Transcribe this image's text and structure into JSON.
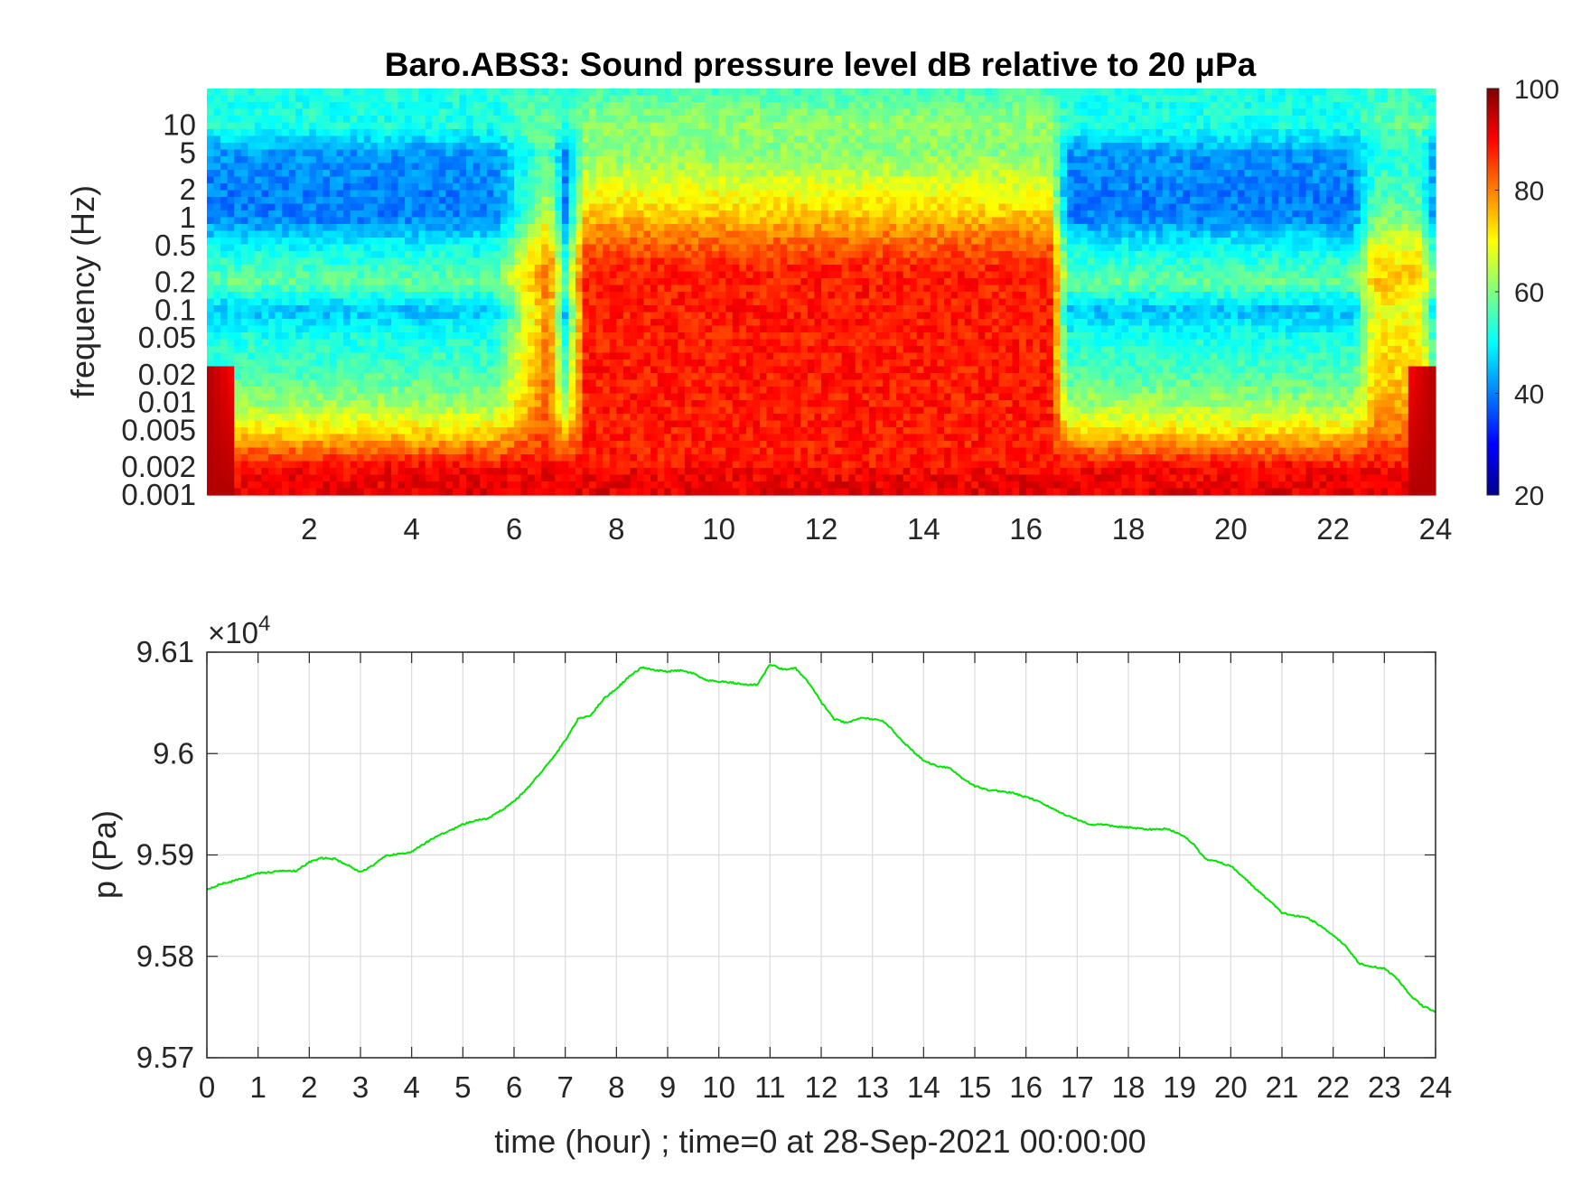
{
  "chart_data": [
    {
      "type": "heatmap",
      "title": "Baro.ABS3: Sound pressure level dB relative to 20 μPa",
      "ylabel": "frequency (Hz)",
      "xlabel": "",
      "xlim": [
        0,
        24
      ],
      "x_ticks": [
        "2",
        "4",
        "6",
        "8",
        "10",
        "12",
        "14",
        "16",
        "18",
        "20",
        "22",
        "24"
      ],
      "y_scale": "log",
      "ylim": [
        0.001,
        25
      ],
      "y_ticks": [
        "0.001",
        "0.002",
        "0.005",
        "0.01",
        "0.02",
        "0.05",
        "0.1",
        "0.2",
        "0.5",
        "1",
        "2",
        "5",
        "10"
      ],
      "colorbar": {
        "min": 20,
        "max": 100,
        "ticks": [
          "20",
          "40",
          "60",
          "80",
          "100"
        ],
        "colormap": "jet"
      },
      "background_profile_db": {
        "freq_hz": [
          0.001,
          0.002,
          0.005,
          0.01,
          0.02,
          0.05,
          0.1,
          0.2,
          0.5,
          1,
          2,
          5,
          10,
          25
        ],
        "db": [
          92,
          90,
          72,
          62,
          56,
          52,
          45,
          58,
          50,
          40,
          40,
          42,
          52,
          52
        ]
      },
      "active_periods_hours": [
        [
          5.6,
          7.0
        ],
        [
          7.0,
          16.8
        ],
        [
          22.4,
          24
        ]
      ],
      "active_peak_db": 88
    },
    {
      "type": "line",
      "title": "",
      "xlabel": "time (hour) ; time=0 at 28-Sep-2021 00:00:00",
      "ylabel": "p (Pa)",
      "xlim": [
        0,
        24
      ],
      "ylim": [
        95700,
        96100
      ],
      "exponent_label": "×10",
      "exponent_power": "4",
      "x_ticks": [
        "0",
        "1",
        "2",
        "3",
        "4",
        "5",
        "6",
        "7",
        "8",
        "9",
        "10",
        "11",
        "12",
        "13",
        "14",
        "15",
        "16",
        "17",
        "18",
        "19",
        "20",
        "21",
        "22",
        "23",
        "24"
      ],
      "y_ticks": [
        "9.57",
        "9.58",
        "9.59",
        "9.6",
        "9.61"
      ],
      "grid": true,
      "line_color": "#00e400",
      "series": [
        {
          "x": [
            0,
            0.25,
            0.5,
            0.75,
            1,
            1.25,
            1.5,
            1.75,
            2,
            2.25,
            2.5,
            2.75,
            3,
            3.25,
            3.5,
            3.75,
            4,
            4.25,
            4.5,
            4.75,
            5,
            5.25,
            5.5,
            5.75,
            6,
            6.25,
            6.5,
            6.75,
            7,
            7.25,
            7.5,
            7.75,
            8,
            8.25,
            8.5,
            8.75,
            9,
            9.25,
            9.5,
            9.75,
            10,
            10.25,
            10.5,
            10.75,
            11,
            11.25,
            11.5,
            11.75,
            12,
            12.25,
            12.5,
            12.75,
            13,
            13.25,
            13.5,
            13.75,
            14,
            14.25,
            14.5,
            14.75,
            15,
            15.25,
            15.5,
            15.75,
            16,
            16.25,
            16.5,
            16.75,
            17,
            17.25,
            17.5,
            17.75,
            18,
            18.25,
            18.5,
            18.75,
            19,
            19.25,
            19.5,
            19.75,
            20,
            20.25,
            20.5,
            20.75,
            21,
            21.25,
            21.5,
            21.75,
            22,
            22.25,
            22.5,
            22.75,
            23,
            23.25,
            23.5,
            23.75,
            24
          ],
          "y": [
            95866,
            95871,
            95874,
            95878,
            95882,
            95883,
            95885,
            95884,
            95893,
            95897,
            95896,
            95890,
            95883,
            95890,
            95899,
            95901,
            95903,
            95911,
            95919,
            95924,
            95930,
            95934,
            95936,
            95944,
            95953,
            95965,
            95980,
            95995,
            96013,
            96034,
            96038,
            96054,
            96064,
            96076,
            96085,
            96082,
            96081,
            96082,
            96079,
            96072,
            96071,
            96070,
            96068,
            96068,
            96088,
            96083,
            96084,
            96070,
            96051,
            96034,
            96030,
            96035,
            96034,
            96031,
            96017,
            96004,
            95993,
            95988,
            95986,
            95976,
            95968,
            95964,
            95963,
            95961,
            95957,
            95953,
            95946,
            95940,
            95935,
            95930,
            95930,
            95928,
            95927,
            95926,
            95925,
            95926,
            95921,
            95912,
            95896,
            95893,
            95889,
            95878,
            95866,
            95855,
            95843,
            95840,
            95838,
            95830,
            95821,
            95810,
            95793,
            95790,
            95788,
            95778,
            95762,
            95751,
            95745
          ]
        }
      ]
    }
  ]
}
